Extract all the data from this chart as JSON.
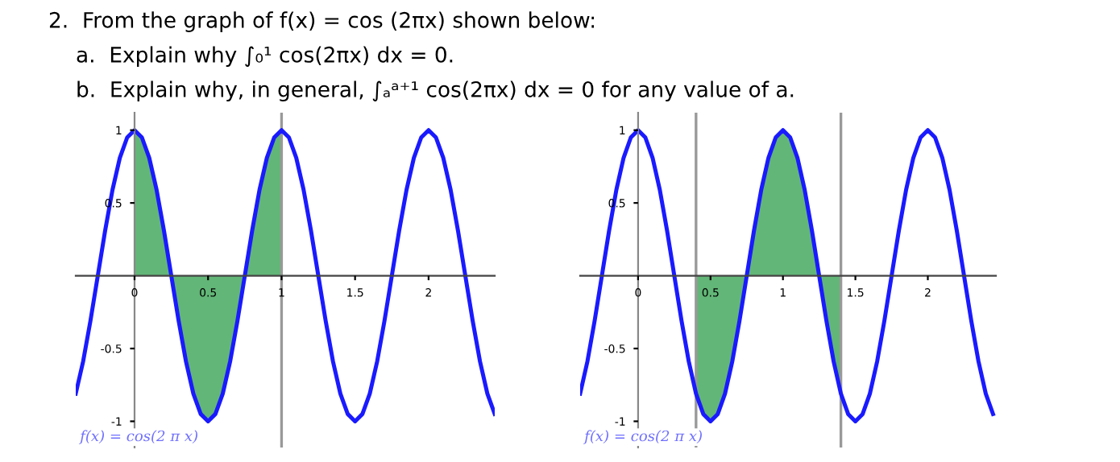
{
  "chart_data": [
    {
      "type": "other",
      "title": "2.  From the graph of f(x) = cos (2πx) shown below:",
      "annotations": [
        "a.  Explain why ∫₀¹ cos(2πx) dx = 0.",
        "b.  Explain why, in general, ∫ₐᵃ⁺¹ cos(2πx) dx = 0 for any value of a."
      ]
    },
    {
      "type": "line",
      "xlim": [
        -0.4,
        2.45
      ],
      "ylim": [
        -1.18,
        1.12
      ],
      "xticks": [
        0,
        0.5,
        1,
        1.5,
        2
      ],
      "yticks": [
        -1,
        -0.5,
        0.5,
        1
      ],
      "grid": false,
      "series": [
        {
          "type": "area",
          "color": "#2e9e4a",
          "x": [
            0,
            0.05,
            0.1,
            0.15,
            0.2,
            0.25,
            0.3,
            0.35,
            0.4,
            0.45,
            0.5,
            0.55,
            0.6,
            0.65,
            0.7,
            0.75,
            0.8,
            0.85,
            0.9,
            0.95,
            1
          ],
          "values": [
            1,
            0.95,
            0.81,
            0.59,
            0.31,
            0,
            -0.31,
            -0.59,
            -0.81,
            -0.95,
            -1,
            -0.95,
            -0.81,
            -0.59,
            -0.31,
            0,
            0.31,
            0.59,
            0.81,
            0.95,
            1
          ]
        },
        {
          "type": "line",
          "color": "#1a1aff",
          "x": [
            -0.4,
            -0.35,
            -0.3,
            -0.25,
            -0.2,
            -0.15,
            -0.1,
            -0.05,
            0,
            0.05,
            0.1,
            0.15,
            0.2,
            0.25,
            0.3,
            0.35,
            0.4,
            0.45,
            0.5,
            0.55,
            0.6,
            0.65,
            0.7,
            0.75,
            0.8,
            0.85,
            0.9,
            0.95,
            1,
            1.05,
            1.1,
            1.15,
            1.2,
            1.25,
            1.3,
            1.35,
            1.4,
            1.45,
            1.5,
            1.55,
            1.6,
            1.65,
            1.7,
            1.75,
            1.8,
            1.85,
            1.9,
            1.95,
            2,
            2.05,
            2.1,
            2.15,
            2.2,
            2.25,
            2.3,
            2.35,
            2.4,
            2.45
          ],
          "values": [
            -0.81,
            -0.59,
            -0.31,
            0,
            0.31,
            0.59,
            0.81,
            0.95,
            1,
            0.95,
            0.81,
            0.59,
            0.31,
            0,
            -0.31,
            -0.59,
            -0.81,
            -0.95,
            -1,
            -0.95,
            -0.81,
            -0.59,
            -0.31,
            0,
            0.31,
            0.59,
            0.81,
            0.95,
            1,
            0.95,
            0.81,
            0.59,
            0.31,
            0,
            -0.31,
            -0.59,
            -0.81,
            -0.95,
            -1,
            -0.95,
            -0.81,
            -0.59,
            -0.31,
            0,
            0.31,
            0.59,
            0.81,
            0.95,
            1,
            0.95,
            0.81,
            0.59,
            0.31,
            0,
            -0.31,
            -0.59,
            -0.81,
            -0.95
          ]
        }
      ],
      "ref_lines": [
        {
          "axis": "x",
          "value": 1,
          "color": "#999999"
        }
      ],
      "annotations": [
        "f(x) = cos(2 π x)"
      ]
    },
    {
      "type": "line",
      "xlim": [
        -0.4,
        2.47
      ],
      "ylim": [
        -1.18,
        1.12
      ],
      "xticks": [
        0,
        0.5,
        1,
        1.5,
        2
      ],
      "yticks": [
        -1,
        -0.5,
        0.5,
        1
      ],
      "grid": false,
      "series": [
        {
          "type": "area",
          "color": "#2e9e4a",
          "x": [
            0.4,
            0.45,
            0.5,
            0.55,
            0.6,
            0.65,
            0.7,
            0.75,
            0.8,
            0.85,
            0.9,
            0.95,
            1,
            1.05,
            1.1,
            1.15,
            1.2,
            1.25,
            1.3,
            1.35,
            1.4
          ],
          "values": [
            -0.81,
            -0.95,
            -1,
            -0.95,
            -0.81,
            -0.59,
            -0.31,
            0,
            0.31,
            0.59,
            0.81,
            0.95,
            1,
            0.95,
            0.81,
            0.59,
            0.31,
            0,
            -0.31,
            -0.59,
            -0.81
          ]
        },
        {
          "type": "line",
          "color": "#1a1aff",
          "x": [
            -0.4,
            -0.35,
            -0.3,
            -0.25,
            -0.2,
            -0.15,
            -0.1,
            -0.05,
            0,
            0.05,
            0.1,
            0.15,
            0.2,
            0.25,
            0.3,
            0.35,
            0.4,
            0.45,
            0.5,
            0.55,
            0.6,
            0.65,
            0.7,
            0.75,
            0.8,
            0.85,
            0.9,
            0.95,
            1,
            1.05,
            1.1,
            1.15,
            1.2,
            1.25,
            1.3,
            1.35,
            1.4,
            1.45,
            1.5,
            1.55,
            1.6,
            1.65,
            1.7,
            1.75,
            1.8,
            1.85,
            1.9,
            1.95,
            2,
            2.05,
            2.1,
            2.15,
            2.2,
            2.25,
            2.3,
            2.35,
            2.4,
            2.45
          ],
          "values": [
            -0.81,
            -0.59,
            -0.31,
            0,
            0.31,
            0.59,
            0.81,
            0.95,
            1,
            0.95,
            0.81,
            0.59,
            0.31,
            0,
            -0.31,
            -0.59,
            -0.81,
            -0.95,
            -1,
            -0.95,
            -0.81,
            -0.59,
            -0.31,
            0,
            0.31,
            0.59,
            0.81,
            0.95,
            1,
            0.95,
            0.81,
            0.59,
            0.31,
            0,
            -0.31,
            -0.59,
            -0.81,
            -0.95,
            -1,
            -0.95,
            -0.81,
            -0.59,
            -0.31,
            0,
            0.31,
            0.59,
            0.81,
            0.95,
            1,
            0.95,
            0.81,
            0.59,
            0.31,
            0,
            -0.31,
            -0.59,
            -0.81,
            -0.95
          ]
        }
      ],
      "ref_lines": [
        {
          "axis": "x",
          "value": 0.4,
          "color": "#999999"
        },
        {
          "axis": "x",
          "value": 1.4,
          "color": "#999999"
        }
      ],
      "annotations": [
        "f(x) = cos(2 π x)"
      ]
    }
  ]
}
